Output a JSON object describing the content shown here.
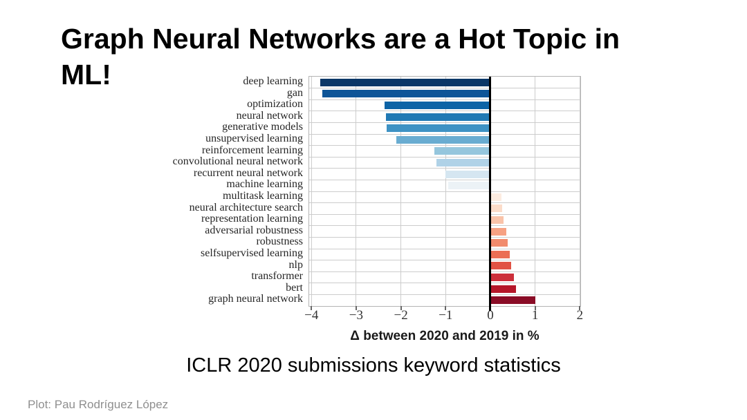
{
  "slide": {
    "title": "Graph Neural Networks are a Hot Topic in ML!",
    "title_lines": [
      "Graph Neural Networks are a Hot Topic in",
      "ML!"
    ],
    "caption": "ICLR 2020 submissions keyword statistics",
    "credit": "Plot: Pau Rodríguez López"
  },
  "chart_data": {
    "type": "bar",
    "orientation": "horizontal",
    "title": "",
    "xlabel": "Δ between 2020 and 2019 in %",
    "ylabel": "",
    "xlim": [
      -4.05,
      2.01
    ],
    "xticks": [
      -4,
      -3,
      -2,
      -1,
      0,
      1,
      2
    ],
    "grid": true,
    "zero_line": true,
    "legend": "none",
    "categories": [
      "deep learning",
      "gan",
      "optimization",
      "neural network",
      "generative models",
      "unsupervised learning",
      "reinforcement learning",
      "convolutional neural network",
      "recurrent neural network",
      "machine learning",
      "multitask learning",
      "neural architecture search",
      "representation learning",
      "adversarial robustness",
      "robustness",
      "selfsupervised learning",
      "nlp",
      "transformer",
      "bert",
      "graph neural network"
    ],
    "values": [
      -3.8,
      -3.75,
      -2.36,
      -2.34,
      -2.32,
      -2.1,
      -1.25,
      -1.2,
      -1.0,
      -0.95,
      0.25,
      0.27,
      0.3,
      0.35,
      0.38,
      0.43,
      0.47,
      0.53,
      0.57,
      1.0
    ],
    "bar_colors": [
      "#0b3767",
      "#0e5598",
      "#0d64a6",
      "#2079b4",
      "#3e92c4",
      "#69acd1",
      "#95c6dd",
      "#b0d2e7",
      "#d5e6f1",
      "#ecf2f6",
      "#fcece1",
      "#fbdcc9",
      "#f9c3a9",
      "#f6a183",
      "#f18b6d",
      "#eb6f55",
      "#e15244",
      "#cc2f3b",
      "#b51629",
      "#8a0c26"
    ],
    "colors": {
      "grid": "#cccccc",
      "plot_border": "#b3b3b3",
      "zero_line": "#000000",
      "tick_text": "#333333",
      "label_text": "#262626"
    }
  }
}
